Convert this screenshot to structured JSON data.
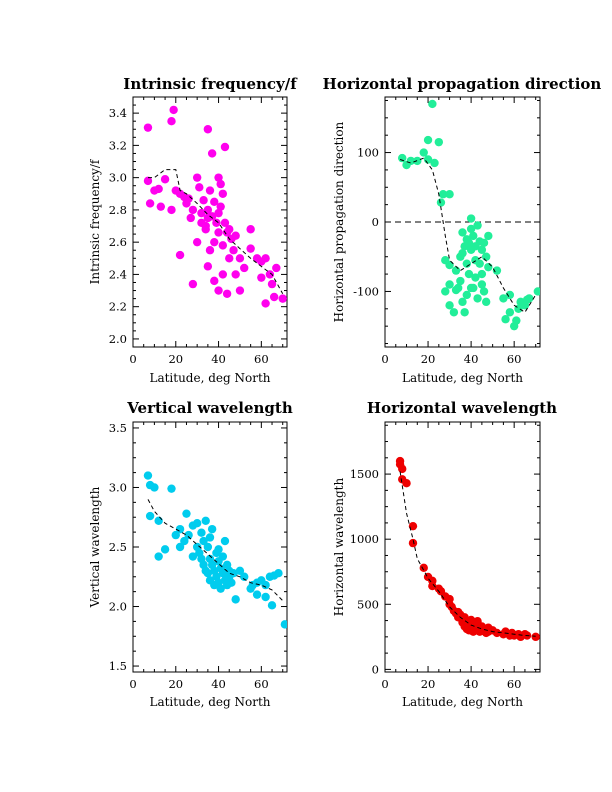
{
  "chart_data": [
    {
      "type": "scatter",
      "title": "Intrinsic frequency/f",
      "xlabel": "Latitude, deg North",
      "ylabel": "Intrinsic frequency/f",
      "xlim": [
        0,
        72
      ],
      "ylim": [
        1.95,
        3.5
      ],
      "xticks": [
        0,
        20,
        40,
        60
      ],
      "xtick_labels": [
        "0",
        "20",
        "40",
        "60"
      ],
      "yticks": [
        2.0,
        2.2,
        2.4,
        2.6,
        2.8,
        3.0,
        3.2,
        3.4
      ],
      "ytick_labels": [
        "2.0",
        "2.2",
        "2.4",
        "2.6",
        "2.8",
        "3.0",
        "3.2",
        "3.4"
      ],
      "color": "#ff00ee",
      "points": [
        [
          7,
          3.31
        ],
        [
          18,
          3.35
        ],
        [
          19,
          3.42
        ],
        [
          35,
          3.3
        ],
        [
          7,
          2.98
        ],
        [
          8,
          2.84
        ],
        [
          10,
          2.92
        ],
        [
          12,
          2.93
        ],
        [
          13,
          2.82
        ],
        [
          15,
          2.99
        ],
        [
          18,
          2.8
        ],
        [
          20,
          2.92
        ],
        [
          22,
          2.9
        ],
        [
          24,
          2.88
        ],
        [
          25,
          2.84
        ],
        [
          26,
          2.87
        ],
        [
          27,
          2.75
        ],
        [
          28,
          2.8
        ],
        [
          30,
          3.0
        ],
        [
          31,
          2.94
        ],
        [
          32,
          2.78
        ],
        [
          32,
          2.72
        ],
        [
          33,
          2.86
        ],
        [
          34,
          2.7
        ],
        [
          34,
          2.68
        ],
        [
          35,
          2.75
        ],
        [
          35,
          2.8
        ],
        [
          36,
          2.92
        ],
        [
          37,
          2.76
        ],
        [
          37,
          3.15
        ],
        [
          38,
          2.6
        ],
        [
          38,
          2.85
        ],
        [
          39,
          2.72
        ],
        [
          40,
          2.78
        ],
        [
          40,
          3.0
        ],
        [
          40,
          2.66
        ],
        [
          41,
          2.96
        ],
        [
          41,
          2.82
        ],
        [
          42,
          2.58
        ],
        [
          42,
          2.9
        ],
        [
          43,
          3.19
        ],
        [
          43,
          2.72
        ],
        [
          44,
          2.66
        ],
        [
          45,
          2.5
        ],
        [
          45,
          2.68
        ],
        [
          46,
          2.62
        ],
        [
          47,
          2.55
        ],
        [
          48,
          2.64
        ],
        [
          48,
          2.4
        ],
        [
          50,
          2.5
        ],
        [
          52,
          2.44
        ],
        [
          55,
          2.68
        ],
        [
          55,
          2.56
        ],
        [
          58,
          2.5
        ],
        [
          60,
          2.48
        ],
        [
          60,
          2.38
        ],
        [
          62,
          2.5
        ],
        [
          62,
          2.22
        ],
        [
          64,
          2.4
        ],
        [
          65,
          2.34
        ],
        [
          67,
          2.44
        ],
        [
          66,
          2.26
        ],
        [
          70,
          2.25
        ],
        [
          22,
          2.52
        ],
        [
          30,
          2.6
        ],
        [
          28,
          2.34
        ],
        [
          35,
          2.45
        ],
        [
          36,
          2.55
        ],
        [
          44,
          2.28
        ],
        [
          50,
          2.3
        ],
        [
          42,
          2.4
        ],
        [
          38,
          2.36
        ],
        [
          40,
          2.3
        ]
      ],
      "trend": [
        [
          7,
          3.0
        ],
        [
          10,
          3.0
        ],
        [
          15,
          3.05
        ],
        [
          20,
          3.05
        ],
        [
          22,
          2.92
        ],
        [
          25,
          2.9
        ],
        [
          30,
          2.84
        ],
        [
          35,
          2.77
        ],
        [
          40,
          2.72
        ],
        [
          45,
          2.62
        ],
        [
          50,
          2.56
        ],
        [
          55,
          2.5
        ],
        [
          60,
          2.45
        ],
        [
          65,
          2.4
        ],
        [
          70,
          2.28
        ]
      ]
    },
    {
      "type": "scatter",
      "title": "Horizontal propagation direction",
      "xlabel": "Latitude, deg North",
      "ylabel": "Horizontal propagation direction",
      "xlim": [
        0,
        72
      ],
      "ylim": [
        -180,
        180
      ],
      "xticks": [
        0,
        20,
        40,
        60
      ],
      "xtick_labels": [
        "0",
        "20",
        "40",
        "60"
      ],
      "yticks": [
        -100,
        0,
        100
      ],
      "ytick_labels": [
        "-100",
        "0",
        "100"
      ],
      "zero_line": true,
      "color": "#22ee99",
      "points": [
        [
          22,
          170
        ],
        [
          20,
          118
        ],
        [
          25,
          115
        ],
        [
          18,
          100
        ],
        [
          8,
          92
        ],
        [
          10,
          82
        ],
        [
          12,
          88
        ],
        [
          15,
          88
        ],
        [
          20,
          90
        ],
        [
          23,
          85
        ],
        [
          26,
          28
        ],
        [
          27,
          40
        ],
        [
          30,
          40
        ],
        [
          28,
          -55
        ],
        [
          30,
          -62
        ],
        [
          32,
          -130
        ],
        [
          30,
          -120
        ],
        [
          28,
          -100
        ],
        [
          33,
          -98
        ],
        [
          34,
          -95
        ],
        [
          35,
          -85
        ],
        [
          35,
          -50
        ],
        [
          36,
          -45
        ],
        [
          36,
          -15
        ],
        [
          37,
          -35
        ],
        [
          38,
          -25
        ],
        [
          38,
          -60
        ],
        [
          39,
          -30
        ],
        [
          39,
          -75
        ],
        [
          40,
          5
        ],
        [
          40,
          -10
        ],
        [
          40,
          -40
        ],
        [
          41,
          -20
        ],
        [
          41,
          -95
        ],
        [
          42,
          -35
        ],
        [
          42,
          -55
        ],
        [
          43,
          -5
        ],
        [
          43,
          -110
        ],
        [
          44,
          -28
        ],
        [
          44,
          -60
        ],
        [
          45,
          -40
        ],
        [
          45,
          -90
        ],
        [
          46,
          -30
        ],
        [
          46,
          -100
        ],
        [
          47,
          -50
        ],
        [
          47,
          -115
        ],
        [
          48,
          -65
        ],
        [
          48,
          -20
        ],
        [
          38,
          -105
        ],
        [
          36,
          -115
        ],
        [
          42,
          -80
        ],
        [
          45,
          -75
        ],
        [
          52,
          -70
        ],
        [
          55,
          -110
        ],
        [
          56,
          -140
        ],
        [
          58,
          -105
        ],
        [
          58,
          -130
        ],
        [
          60,
          -150
        ],
        [
          61,
          -142
        ],
        [
          62,
          -125
        ],
        [
          63,
          -115
        ],
        [
          65,
          -120
        ],
        [
          66,
          -112
        ],
        [
          67,
          -110
        ],
        [
          71,
          -100
        ],
        [
          30,
          -90
        ],
        [
          33,
          -70
        ],
        [
          37,
          -130
        ],
        [
          40,
          -95
        ]
      ],
      "trend": [
        [
          7,
          90
        ],
        [
          12,
          85
        ],
        [
          18,
          92
        ],
        [
          22,
          75
        ],
        [
          25,
          40
        ],
        [
          28,
          -20
        ],
        [
          30,
          -55
        ],
        [
          35,
          -70
        ],
        [
          40,
          -60
        ],
        [
          45,
          -50
        ],
        [
          50,
          -65
        ],
        [
          55,
          -95
        ],
        [
          60,
          -120
        ],
        [
          65,
          -130
        ],
        [
          70,
          -105
        ]
      ]
    },
    {
      "type": "scatter",
      "title": "Vertical wavelength",
      "xlabel": "Latitude, deg North",
      "ylabel": "Vertical wavelength",
      "xlim": [
        0,
        72
      ],
      "ylim": [
        1.45,
        3.55
      ],
      "xticks": [
        0,
        20,
        40,
        60
      ],
      "xtick_labels": [
        "0",
        "20",
        "40",
        "60"
      ],
      "yticks": [
        1.5,
        2.0,
        2.5,
        3.0,
        3.5
      ],
      "ytick_labels": [
        "1.5",
        "2.0",
        "2.5",
        "3.0",
        "3.5"
      ],
      "color": "#00ccee",
      "points": [
        [
          7,
          3.1
        ],
        [
          8,
          3.02
        ],
        [
          10,
          3.0
        ],
        [
          8,
          2.76
        ],
        [
          12,
          2.72
        ],
        [
          12,
          2.42
        ],
        [
          15,
          2.48
        ],
        [
          18,
          2.99
        ],
        [
          20,
          2.6
        ],
        [
          22,
          2.65
        ],
        [
          22,
          2.5
        ],
        [
          24,
          2.55
        ],
        [
          25,
          2.78
        ],
        [
          26,
          2.6
        ],
        [
          28,
          2.68
        ],
        [
          28,
          2.42
        ],
        [
          30,
          2.7
        ],
        [
          30,
          2.5
        ],
        [
          31,
          2.45
        ],
        [
          32,
          2.62
        ],
        [
          32,
          2.4
        ],
        [
          33,
          2.55
        ],
        [
          33,
          2.35
        ],
        [
          34,
          2.72
        ],
        [
          34,
          2.3
        ],
        [
          35,
          2.5
        ],
        [
          35,
          2.28
        ],
        [
          36,
          2.4
        ],
        [
          36,
          2.22
        ],
        [
          37,
          2.65
        ],
        [
          37,
          2.35
        ],
        [
          38,
          2.3
        ],
        [
          38,
          2.18
        ],
        [
          39,
          2.45
        ],
        [
          39,
          2.25
        ],
        [
          40,
          2.2
        ],
        [
          40,
          2.38
        ],
        [
          41,
          2.32
        ],
        [
          41,
          2.15
        ],
        [
          42,
          2.28
        ],
        [
          42,
          2.42
        ],
        [
          43,
          2.22
        ],
        [
          43,
          2.55
        ],
        [
          44,
          2.35
        ],
        [
          44,
          2.18
        ],
        [
          45,
          2.3
        ],
        [
          45,
          2.25
        ],
        [
          46,
          2.2
        ],
        [
          47,
          2.28
        ],
        [
          48,
          2.06
        ],
        [
          50,
          2.3
        ],
        [
          52,
          2.25
        ],
        [
          55,
          2.15
        ],
        [
          56,
          2.18
        ],
        [
          58,
          2.2
        ],
        [
          58,
          2.1
        ],
        [
          60,
          2.22
        ],
        [
          62,
          2.18
        ],
        [
          62,
          2.08
        ],
        [
          64,
          2.25
        ],
        [
          65,
          2.01
        ],
        [
          66,
          2.26
        ],
        [
          68,
          2.28
        ],
        [
          71,
          1.85
        ],
        [
          36,
          2.58
        ],
        [
          40,
          2.48
        ]
      ],
      "trend": [
        [
          7,
          2.9
        ],
        [
          10,
          2.8
        ],
        [
          15,
          2.7
        ],
        [
          20,
          2.65
        ],
        [
          25,
          2.6
        ],
        [
          30,
          2.52
        ],
        [
          35,
          2.44
        ],
        [
          40,
          2.36
        ],
        [
          45,
          2.28
        ],
        [
          50,
          2.25
        ],
        [
          55,
          2.2
        ],
        [
          60,
          2.18
        ],
        [
          65,
          2.14
        ],
        [
          70,
          2.05
        ]
      ]
    },
    {
      "type": "scatter",
      "title": "Horizontal wavelength",
      "xlabel": "Latitude, deg North",
      "ylabel": "Horizontal wavelength",
      "xlim": [
        0,
        72
      ],
      "ylim": [
        -20,
        1900
      ],
      "xticks": [
        0,
        20,
        40,
        60
      ],
      "xtick_labels": [
        "0",
        "20",
        "40",
        "60"
      ],
      "yticks": [
        0,
        500,
        1000,
        1500
      ],
      "ytick_labels": [
        "0",
        "500",
        "1000",
        "1500"
      ],
      "color": "#ee0000",
      "points": [
        [
          7,
          1600
        ],
        [
          7,
          1575
        ],
        [
          8,
          1540
        ],
        [
          8,
          1460
        ],
        [
          10,
          1430
        ],
        [
          13,
          1100
        ],
        [
          13,
          970
        ],
        [
          18,
          780
        ],
        [
          20,
          710
        ],
        [
          22,
          680
        ],
        [
          22,
          640
        ],
        [
          25,
          620
        ],
        [
          26,
          600
        ],
        [
          28,
          560
        ],
        [
          30,
          540
        ],
        [
          30,
          500
        ],
        [
          31,
          480
        ],
        [
          32,
          450
        ],
        [
          33,
          430
        ],
        [
          34,
          440
        ],
        [
          34,
          400
        ],
        [
          35,
          420
        ],
        [
          36,
          380
        ],
        [
          36,
          360
        ],
        [
          37,
          400
        ],
        [
          37,
          330
        ],
        [
          38,
          370
        ],
        [
          38,
          310
        ],
        [
          39,
          350
        ],
        [
          39,
          300
        ],
        [
          40,
          380
        ],
        [
          40,
          330
        ],
        [
          41,
          360
        ],
        [
          41,
          290
        ],
        [
          42,
          340
        ],
        [
          42,
          310
        ],
        [
          43,
          300
        ],
        [
          43,
          370
        ],
        [
          44,
          320
        ],
        [
          44,
          290
        ],
        [
          45,
          330
        ],
        [
          45,
          300
        ],
        [
          46,
          310
        ],
        [
          47,
          300
        ],
        [
          47,
          280
        ],
        [
          48,
          290
        ],
        [
          48,
          320
        ],
        [
          50,
          300
        ],
        [
          52,
          280
        ],
        [
          55,
          270
        ],
        [
          56,
          290
        ],
        [
          58,
          260
        ],
        [
          59,
          280
        ],
        [
          60,
          260
        ],
        [
          62,
          270
        ],
        [
          63,
          250
        ],
        [
          65,
          270
        ],
        [
          66,
          260
        ],
        [
          70,
          250
        ]
      ],
      "trend": [
        [
          7,
          1520
        ],
        [
          10,
          1200
        ],
        [
          13,
          1000
        ],
        [
          15,
          850
        ],
        [
          18,
          760
        ],
        [
          20,
          700
        ],
        [
          25,
          600
        ],
        [
          30,
          480
        ],
        [
          35,
          400
        ],
        [
          40,
          340
        ],
        [
          45,
          310
        ],
        [
          50,
          290
        ],
        [
          55,
          280
        ],
        [
          60,
          270
        ],
        [
          65,
          260
        ],
        [
          70,
          255
        ]
      ]
    }
  ]
}
